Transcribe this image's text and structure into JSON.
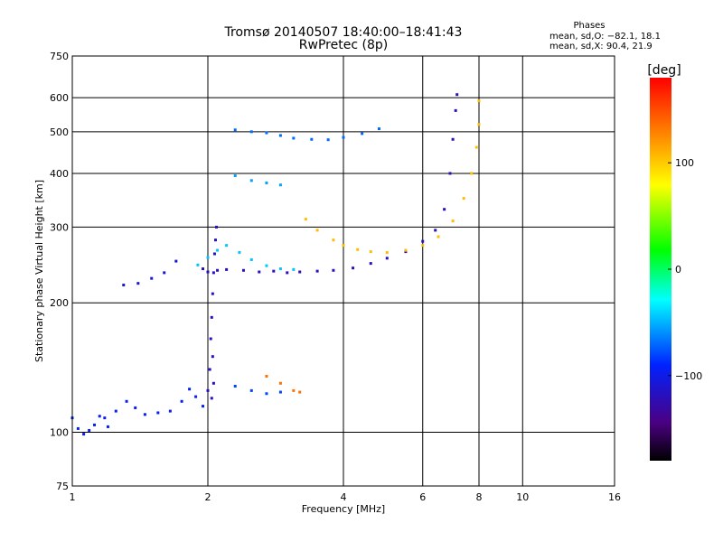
{
  "chart_data": {
    "type": "scatter",
    "title": "Tromsø 20140507 18:40:00–18:41:43",
    "subtitle": "RwPretec (8p)",
    "xlabel": "Frequency [MHz]",
    "ylabel": "Stationary phase Virtual Height [km]",
    "x_scale": "log",
    "y_scale": "log",
    "xlim": [
      1,
      16
    ],
    "ylim": [
      75,
      750
    ],
    "xticks": [
      "1",
      "2",
      "4",
      "6",
      "8",
      "10",
      "16"
    ],
    "yticks": [
      "75",
      "100",
      "200",
      "300",
      "400",
      "500",
      "600",
      "750"
    ],
    "grid": true,
    "colorbar": {
      "label": "[deg]",
      "range": [
        -180,
        180
      ],
      "ticks": [
        "100",
        "0",
        "−100"
      ],
      "tick_values": [
        100,
        0,
        -100
      ],
      "colormap": "rainbow"
    },
    "info_box": {
      "title": "Phases",
      "line_o": "mean, sd,O: −82.1, 18.1",
      "line_x": "mean, sd,X:  90.4, 21.9"
    },
    "series": [
      {
        "points": [
          [
            1.0,
            108
          ],
          [
            1.03,
            102
          ],
          [
            1.06,
            99
          ],
          [
            1.09,
            101
          ],
          [
            1.12,
            104
          ],
          [
            1.15,
            109
          ],
          [
            1.18,
            108
          ],
          [
            1.2,
            103
          ],
          [
            1.25,
            112
          ],
          [
            1.32,
            118
          ],
          [
            1.38,
            114
          ],
          [
            1.45,
            110
          ],
          [
            1.55,
            111
          ],
          [
            1.65,
            112
          ],
          [
            1.75,
            118
          ],
          [
            1.82,
            126
          ],
          [
            1.88,
            121
          ],
          [
            1.95,
            115
          ]
        ],
        "phase": -95
      },
      {
        "points": [
          [
            2.0,
            125
          ],
          [
            2.02,
            140
          ],
          [
            2.03,
            165
          ],
          [
            2.04,
            185
          ],
          [
            2.05,
            210
          ],
          [
            2.06,
            235
          ],
          [
            2.07,
            260
          ],
          [
            2.08,
            280
          ],
          [
            2.09,
            300
          ],
          [
            2.05,
            150
          ],
          [
            2.06,
            130
          ],
          [
            2.04,
            120
          ]
        ],
        "phase": -115
      },
      {
        "points": [
          [
            1.95,
            240
          ],
          [
            2.0,
            236
          ],
          [
            2.1,
            238
          ],
          [
            2.2,
            239
          ],
          [
            2.4,
            238
          ],
          [
            2.6,
            236
          ],
          [
            2.8,
            237
          ],
          [
            3.0,
            235
          ],
          [
            3.2,
            236
          ],
          [
            3.5,
            237
          ],
          [
            3.8,
            238
          ],
          [
            4.2,
            241
          ],
          [
            4.6,
            247
          ],
          [
            5.0,
            254
          ],
          [
            5.5,
            263
          ],
          [
            6.0,
            278
          ],
          [
            6.4,
            295
          ],
          [
            6.7,
            330
          ],
          [
            6.9,
            400
          ],
          [
            7.0,
            480
          ],
          [
            7.1,
            560
          ],
          [
            7.15,
            610
          ]
        ],
        "phase": -120
      },
      {
        "points": [
          [
            1.9,
            245
          ],
          [
            2.0,
            255
          ],
          [
            2.1,
            265
          ],
          [
            2.2,
            272
          ],
          [
            2.35,
            262
          ],
          [
            2.5,
            252
          ],
          [
            2.7,
            244
          ],
          [
            2.9,
            240
          ],
          [
            3.1,
            239
          ]
        ],
        "phase": -45
      },
      {
        "points": [
          [
            2.3,
            505
          ],
          [
            2.5,
            500
          ],
          [
            2.7,
            497
          ],
          [
            2.9,
            490
          ],
          [
            3.1,
            483
          ],
          [
            3.4,
            480
          ],
          [
            3.7,
            479
          ],
          [
            4.0,
            485
          ],
          [
            4.4,
            495
          ],
          [
            4.8,
            508
          ]
        ],
        "phase": -70
      },
      {
        "points": [
          [
            2.3,
            395
          ],
          [
            2.5,
            385
          ],
          [
            2.7,
            380
          ],
          [
            2.9,
            376
          ]
        ],
        "phase": -55
      },
      {
        "points": [
          [
            3.3,
            313
          ],
          [
            3.5,
            295
          ],
          [
            3.8,
            280
          ],
          [
            4.0,
            272
          ],
          [
            4.3,
            266
          ],
          [
            4.6,
            263
          ],
          [
            5.0,
            262
          ],
          [
            5.5,
            265
          ],
          [
            6.0,
            272
          ],
          [
            6.5,
            285
          ],
          [
            7.0,
            310
          ],
          [
            7.4,
            350
          ],
          [
            7.7,
            400
          ],
          [
            7.9,
            460
          ],
          [
            8.0,
            520
          ],
          [
            8.0,
            590
          ]
        ],
        "phase": 105
      },
      {
        "points": [
          [
            2.7,
            135
          ],
          [
            2.9,
            130
          ],
          [
            3.1,
            125
          ],
          [
            3.2,
            124
          ]
        ],
        "phase": 135
      },
      {
        "points": [
          [
            1.3,
            220
          ],
          [
            1.4,
            222
          ],
          [
            1.5,
            228
          ],
          [
            1.6,
            235
          ],
          [
            1.7,
            250
          ]
        ],
        "phase": -110
      },
      {
        "points": [
          [
            2.3,
            128
          ],
          [
            2.5,
            125
          ],
          [
            2.7,
            123
          ],
          [
            2.9,
            124
          ]
        ],
        "phase": -80
      }
    ]
  }
}
